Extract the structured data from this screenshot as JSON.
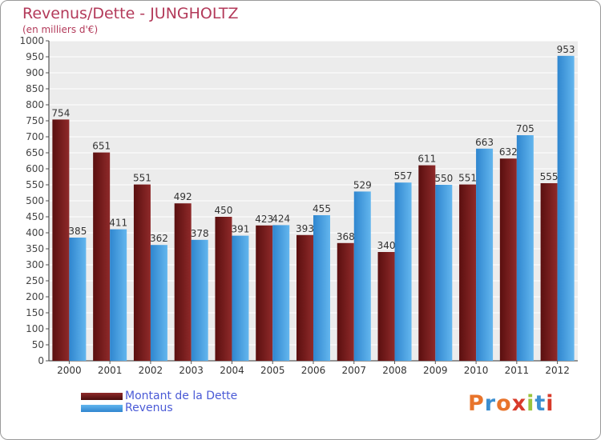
{
  "chart_data": {
    "type": "bar",
    "title": "Revenus/Dette - JUNGHOLTZ",
    "subtitle": "(en milliers d'€)",
    "categories": [
      "2000",
      "2001",
      "2002",
      "2003",
      "2004",
      "2005",
      "2006",
      "2007",
      "2008",
      "2009",
      "2010",
      "2011",
      "2012"
    ],
    "series": [
      {
        "name": "Montant de la Dette",
        "color": "#7b1c1c",
        "values": [
          754,
          651,
          551,
          492,
          450,
          423,
          393,
          368,
          340,
          611,
          551,
          632,
          555
        ]
      },
      {
        "name": "Revenus",
        "color": "#4ba3e3",
        "values": [
          385,
          411,
          362,
          378,
          391,
          424,
          455,
          529,
          557,
          550,
          663,
          705,
          953
        ]
      }
    ],
    "ylim": [
      0,
      1000
    ],
    "ytick_step": 50,
    "grid": true,
    "legend_position": "bottom-left"
  },
  "logo": {
    "text": "Proxiti",
    "letter_colors": [
      "#e8742b",
      "#3b8ed0",
      "#e8742b",
      "#d83b2b",
      "#9ac43c",
      "#3b8ed0",
      "#d83b2b"
    ]
  }
}
